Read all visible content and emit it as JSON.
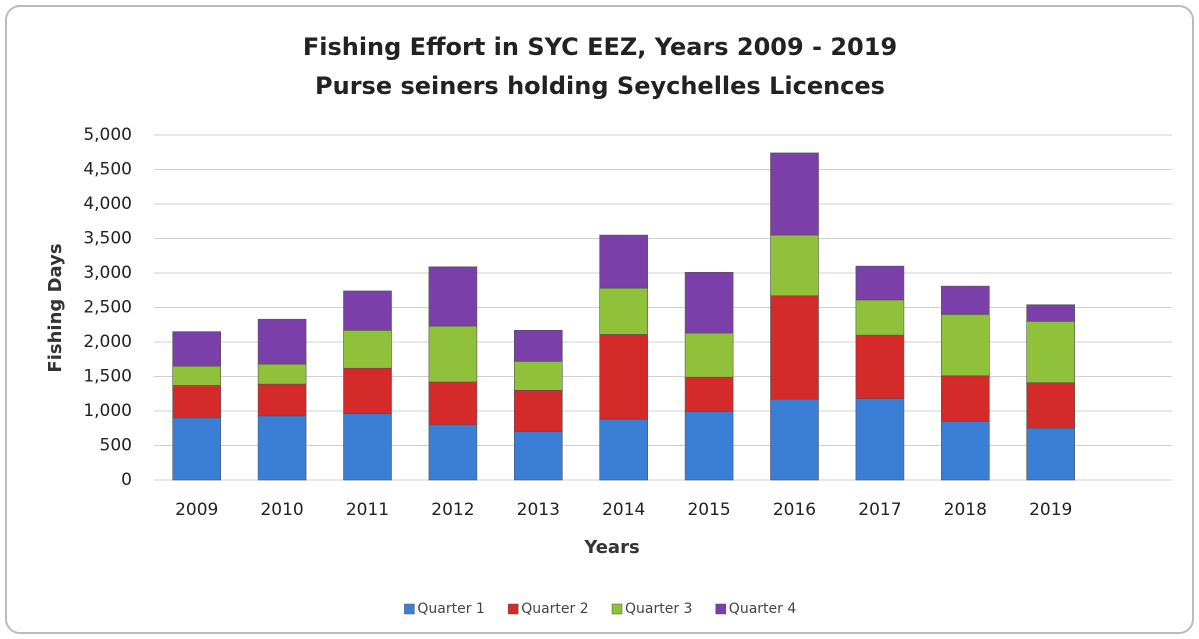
{
  "chart_data": {
    "type": "stacked_bar",
    "title": "Fishing Effort in SYC EEZ, Years 2009 - 2019",
    "subtitle": "Purse seiners holding Seychelles Licences",
    "x_label": "Years",
    "y_label": "Fishing Days",
    "categories": [
      "2009",
      "2010",
      "2011",
      "2012",
      "2013",
      "2014",
      "2015",
      "2016",
      "2017",
      "2018",
      "2019"
    ],
    "series": [
      {
        "name": "Quarter 1",
        "color": "#3a7fd5",
        "values": [
          900,
          930,
          960,
          800,
          700,
          880,
          990,
          1170,
          1180,
          850,
          750
        ]
      },
      {
        "name": "Quarter 2",
        "color": "#d42a2a",
        "values": [
          470,
          460,
          660,
          620,
          600,
          1230,
          500,
          1500,
          920,
          660,
          660
        ]
      },
      {
        "name": "Quarter 3",
        "color": "#8fc23a",
        "values": [
          280,
          290,
          550,
          810,
          420,
          670,
          640,
          880,
          510,
          890,
          890
        ]
      },
      {
        "name": "Quarter 4",
        "color": "#7a3fa8",
        "values": [
          500,
          650,
          570,
          860,
          450,
          770,
          880,
          1190,
          490,
          410,
          240
        ]
      }
    ],
    "ylim": [
      0,
      5000
    ],
    "yticks": [
      0,
      500,
      {
        "value": 1000,
        "label": "1,000"
      },
      {
        "value": 1500,
        "label": "1,500"
      },
      {
        "value": 2000,
        "label": "2,000"
      },
      {
        "value": 2500,
        "label": "2,500"
      },
      {
        "value": 3000,
        "label": "3,000"
      },
      {
        "value": 3500,
        "label": "3,500"
      },
      {
        "value": 4000,
        "label": "4,000"
      },
      {
        "value": 4500,
        "label": "4,500"
      },
      {
        "value": 5000,
        "label": "5,000"
      }
    ],
    "grid": true,
    "legend": "bottom"
  }
}
